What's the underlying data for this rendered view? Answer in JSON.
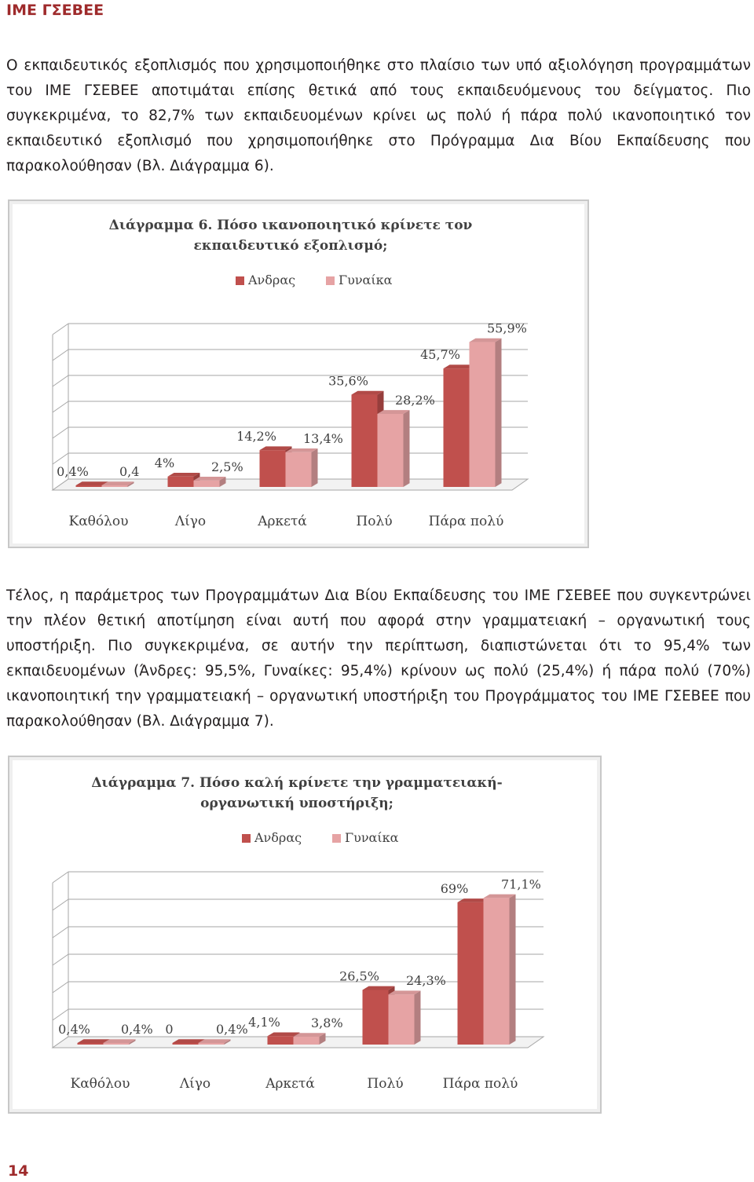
{
  "header": "ΙΜΕ ΓΣΕΒΕΕ",
  "paragraph1": "Ο εκπαιδευτικός εξοπλισμός που χρησιμοποιήθηκε στο πλαίσιο των υπό αξιολόγηση προγραμμάτων του ΙΜΕ ΓΣΕΒΕΕ αποτιμάται επίσης θετικά από τους εκπαιδευόμενους του δείγματος. Πιο συγκεκριμένα, το 82,7% των εκπαιδευομένων κρίνει ως πολύ ή πάρα πολύ ικανοποιητικό τον εκπαιδευτικό εξοπλισμό που χρησιμοποιήθηκε στο Πρόγραμμα Δια Βίου Εκπαίδευσης που παρακολούθησαν (Βλ. Διάγραμμα 6).",
  "paragraph2": "Τέλος, η παράμετρος των Προγραμμάτων Δια Βίου Εκπαίδευσης του ΙΜΕ ΓΣΕΒΕΕ που συγκεντρώνει την πλέον θετική αποτίμηση είναι αυτή που αφορά στην γραμματειακή – οργανωτική τους υποστήριξη. Πιο συγκεκριμένα, σε αυτήν την περίπτωση, διαπιστώνεται ότι το 95,4% των εκπαιδευομένων (Άνδρες: 95,5%, Γυναίκες: 95,4%) κρίνουν ως πολύ (25,4%) ή πάρα πολύ (70%) ικανοποιητική την γραμματειακή – οργανωτική υποστήριξη του Προγράμματος του ΙΜΕ ΓΣΕΒΕΕ που παρακολούθησαν (Βλ. Διάγραμμα 7).",
  "page_number": "14",
  "colors": {
    "male": "#c0504d",
    "female": "#e6a3a4",
    "header": "#9e2a2b",
    "grid": "#a6a6a6"
  },
  "chart_data": [
    {
      "type": "bar",
      "title_line1": "Διάγραμμα 6. Πόσο ικανοποιητικό κρίνετε τον",
      "title_line2": "εκπαιδευτικό εξοπλισμό;",
      "categories": [
        "Καθόλου",
        "Λίγο",
        "Αρκετά",
        "Πολύ",
        "Πάρα πολύ"
      ],
      "series": [
        {
          "name": "Ανδρας",
          "values": [
            0.4,
            4,
            14.2,
            35.6,
            45.7
          ],
          "labels": [
            "0,4%",
            "4%",
            "14,2%",
            "35,6%",
            "45,7%"
          ]
        },
        {
          "name": "Γυναίκα",
          "values": [
            0.4,
            2.5,
            13.4,
            28.2,
            55.9
          ],
          "labels": [
            "0,4",
            "2,5%",
            "13,4%",
            "28,2%",
            "55,9%"
          ]
        }
      ],
      "ylim": [
        0,
        60
      ],
      "legend": "top"
    },
    {
      "type": "bar",
      "title_line1": "Διάγραμμα 7. Πόσο καλή κρίνετε την γραμματειακή-",
      "title_line2": "οργανωτική υποστήριξη;",
      "categories": [
        "Καθόλου",
        "Λίγο",
        "Αρκετά",
        "Πολύ",
        "Πάρα πολύ"
      ],
      "series": [
        {
          "name": "Ανδρας",
          "values": [
            0.4,
            0,
            4.1,
            26.5,
            69
          ],
          "labels": [
            "0,4%",
            "0",
            "4,1%",
            "26,5%",
            "69%"
          ]
        },
        {
          "name": "Γυναίκα",
          "values": [
            0.4,
            0.4,
            3.8,
            24.3,
            71.1
          ],
          "labels": [
            "0,4%",
            "0,4%",
            "3,8%",
            "24,3%",
            "71,1%"
          ]
        }
      ],
      "ylim": [
        0,
        80
      ],
      "legend": "top"
    }
  ]
}
